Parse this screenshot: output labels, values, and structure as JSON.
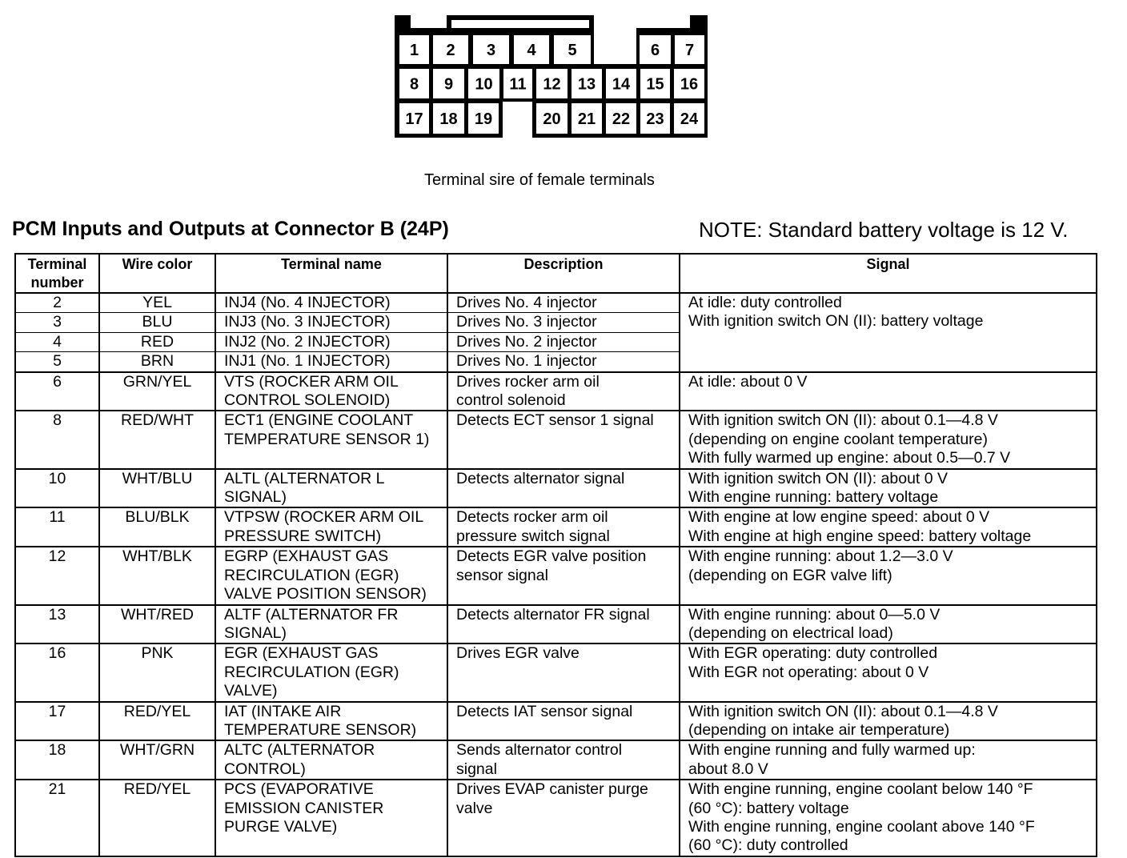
{
  "connector": {
    "rows": [
      [
        "1",
        "2",
        "3",
        "4",
        "5",
        "6",
        "7"
      ],
      [
        "8",
        "9",
        "10",
        "11",
        "12",
        "13",
        "14",
        "15",
        "16"
      ],
      [
        "17",
        "18",
        "19",
        "20",
        "21",
        "22",
        "23",
        "24"
      ]
    ],
    "caption": "Terminal sire of female terminals"
  },
  "title": "PCM Inputs and Outputs at Connector B (24P)",
  "note": "NOTE: Standard battery voltage is 12 V.",
  "table": {
    "headers": [
      "Terminal number",
      "Wire color",
      "Terminal name",
      "Description",
      "Signal"
    ],
    "injector_signal": [
      "At idle: duty controlled",
      "With ignition switch ON (II): battery voltage"
    ],
    "injector_rows": [
      {
        "terminal": "2",
        "color": "YEL",
        "name": "INJ4 (No. 4 INJECTOR)",
        "desc": "Drives No. 4 injector"
      },
      {
        "terminal": "3",
        "color": "BLU",
        "name": "INJ3 (No. 3 INJECTOR)",
        "desc": "Drives No. 3 injector"
      },
      {
        "terminal": "4",
        "color": "RED",
        "name": "INJ2 (No. 2 INJECTOR)",
        "desc": "Drives No. 2 injector"
      },
      {
        "terminal": "5",
        "color": "BRN",
        "name": "INJ1 (No. 1 INJECTOR)",
        "desc": "Drives No. 1 injector"
      }
    ],
    "rows": [
      {
        "terminal": "6",
        "color": "GRN/YEL",
        "name": [
          "VTS (ROCKER ARM OIL",
          "CONTROL SOLENOID)"
        ],
        "desc": [
          "Drives rocker arm oil",
          "control solenoid"
        ],
        "signal": [
          "At idle: about 0 V"
        ]
      },
      {
        "terminal": "8",
        "color": "RED/WHT",
        "name": [
          "ECT1 (ENGINE COOLANT",
          "TEMPERATURE SENSOR 1)"
        ],
        "desc": [
          "Detects ECT sensor 1 signal"
        ],
        "signal": [
          "With ignition switch ON (II): about 0.1—4.8 V",
          "(depending on engine coolant temperature)",
          "With fully warmed up engine: about 0.5—0.7 V"
        ]
      },
      {
        "terminal": "10",
        "color": "WHT/BLU",
        "name": [
          "ALTL (ALTERNATOR L",
          "SIGNAL)"
        ],
        "desc": [
          "Detects alternator signal"
        ],
        "signal": [
          "With ignition switch ON (II): about 0 V",
          "With engine running: battery voltage"
        ]
      },
      {
        "terminal": "11",
        "color": "BLU/BLK",
        "name": [
          "VTPSW (ROCKER ARM OIL",
          "PRESSURE SWITCH)"
        ],
        "desc": [
          "Detects rocker arm oil",
          "pressure switch signal"
        ],
        "signal": [
          "With engine at low engine speed: about 0 V",
          "With engine at high engine speed: battery voltage"
        ]
      },
      {
        "terminal": "12",
        "color": "WHT/BLK",
        "name": [
          "EGRP (EXHAUST GAS",
          "RECIRCULATION (EGR)",
          "VALVE POSITION SENSOR)"
        ],
        "desc": [
          "Detects EGR valve position",
          "sensor signal"
        ],
        "signal": [
          "With engine running: about 1.2—3.0 V",
          "(depending on EGR valve lift)"
        ]
      },
      {
        "terminal": "13",
        "color": "WHT/RED",
        "name": [
          "ALTF (ALTERNATOR FR",
          "SIGNAL)"
        ],
        "desc": [
          "Detects alternator FR signal"
        ],
        "signal": [
          "With engine running: about 0—5.0 V",
          "(depending on electrical load)"
        ]
      },
      {
        "terminal": "16",
        "color": "PNK",
        "name": [
          "EGR (EXHAUST GAS",
          "RECIRCULATION (EGR)",
          "VALVE)"
        ],
        "desc": [
          "Drives EGR valve"
        ],
        "signal": [
          "With EGR operating: duty controlled",
          "With EGR not operating: about 0 V"
        ]
      },
      {
        "terminal": "17",
        "color": "RED/YEL",
        "name": [
          "IAT (INTAKE AIR",
          "TEMPERATURE SENSOR)"
        ],
        "desc": [
          "Detects IAT sensor signal"
        ],
        "signal": [
          "With ignition switch ON (II): about 0.1—4.8 V",
          "(depending on intake air temperature)"
        ]
      },
      {
        "terminal": "18",
        "color": "WHT/GRN",
        "name": [
          "ALTC (ALTERNATOR",
          "CONTROL)"
        ],
        "desc": [
          "Sends alternator control",
          "signal"
        ],
        "signal": [
          "With engine running and fully warmed up:",
          "about 8.0 V"
        ]
      },
      {
        "terminal": "21",
        "color": "RED/YEL",
        "name": [
          "PCS (EVAPORATIVE",
          "EMISSION CANISTER",
          "PURGE VALVE)"
        ],
        "desc": [
          "Drives EVAP canister purge",
          "valve"
        ],
        "signal": [
          "With engine running, engine coolant below 140 °F",
          "(60 °C): battery voltage",
          "With engine running, engine coolant above 140 °F",
          "(60 °C): duty controlled"
        ]
      }
    ]
  }
}
